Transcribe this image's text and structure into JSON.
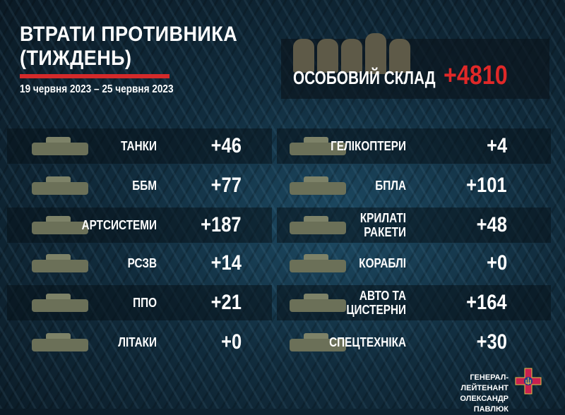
{
  "header": {
    "title_line1": "ВТРАТИ ПРОТИВНИКА",
    "title_line2": "(ТИЖДЕНЬ)",
    "dates": "19 червня  2023 – 25 червня  2023"
  },
  "personnel": {
    "label": "ОСОБОВИЙ СКЛАД",
    "value": "+4810",
    "value_color": "#e02828"
  },
  "left": [
    {
      "label": "ТАНКИ",
      "value": "+46",
      "icon": "tank-icon"
    },
    {
      "label": "ББМ",
      "value": "+77",
      "icon": "armored-vehicle-icon"
    },
    {
      "label": "АРТСИСТЕМИ",
      "value": "+187",
      "icon": "artillery-icon"
    },
    {
      "label": "РСЗВ",
      "value": "+14",
      "icon": "mlrs-icon"
    },
    {
      "label": "ППО",
      "value": "+21",
      "icon": "air-defense-icon"
    },
    {
      "label": "ЛІТАКИ",
      "value": "+0",
      "icon": "jet-icon"
    }
  ],
  "right": [
    {
      "label": "ГЕЛІКОПТЕРИ",
      "value": "+4",
      "icon": "helicopter-icon"
    },
    {
      "label": "БПЛА",
      "value": "+101",
      "icon": "drone-icon"
    },
    {
      "label": "КРИЛАТІ РАКЕТИ",
      "value": "+48",
      "icon": "missile-icon"
    },
    {
      "label": "КОРАБЛІ",
      "value": "+0",
      "icon": "ship-icon"
    },
    {
      "label": "АВТО ТА ЦИСТЕРНИ",
      "value": "+164",
      "icon": "truck-icon"
    },
    {
      "label": "СПЕЦТЕХНІКА",
      "value": "+30",
      "icon": "special-vehicle-icon"
    }
  ],
  "footer": {
    "line1": "ГЕНЕРАЛ-ЛЕЙТЕНАНТ",
    "line2": "ОЛЕКСАНДР ПАВЛЮК",
    "emblem": "ground-forces-emblem-icon"
  },
  "colors": {
    "accent_red": "#d42a2a",
    "background": "#112c3d"
  }
}
